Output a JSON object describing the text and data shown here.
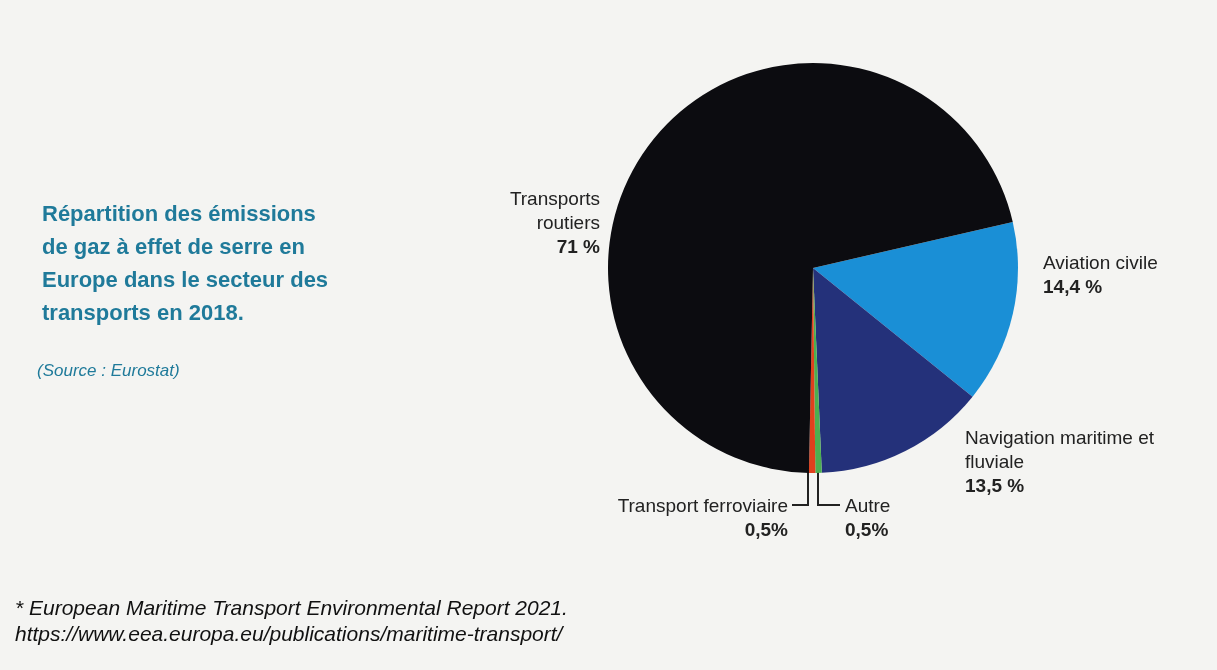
{
  "chart_data": {
    "type": "pie",
    "title": "Répartition des émissions de gaz à effet de serre en Europe dans le secteur des transports en 2018.",
    "categories": [
      "Aviation civile",
      "Navigation maritime et fluviale",
      "Autre",
      "Transport ferroviaire",
      "Transports routiers"
    ],
    "values": [
      14.4,
      13.5,
      0.5,
      0.5,
      71
    ],
    "value_labels": [
      "14,4 %",
      "13,5 %",
      "0,5%",
      "0,5%",
      "71 %"
    ],
    "colors": [
      "#1a8fd6",
      "#24317a",
      "#4caf50",
      "#e0401c",
      "#0c0c10"
    ],
    "annotations": [
      "(Source : Eurostat)",
      "* European Maritime Transport Environmental Report 2021.",
      "https://www.eea.europa.eu/publications/maritime-transport/"
    ]
  }
}
